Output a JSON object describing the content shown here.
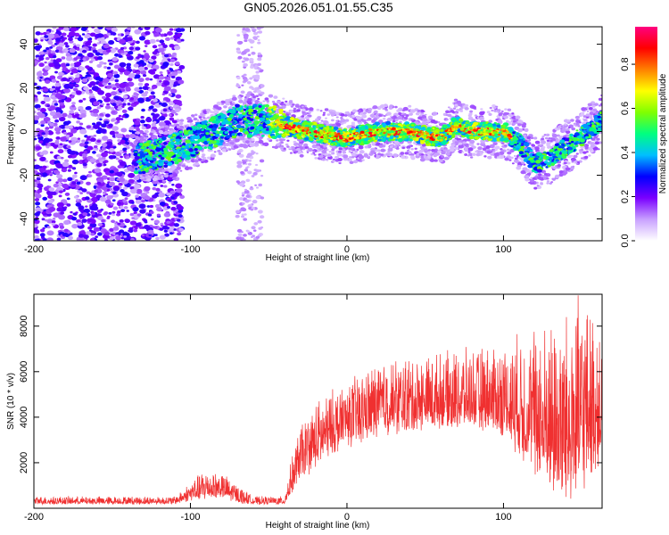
{
  "chart_data": [
    {
      "type": "heatmap",
      "title": "GN05.2026.051.01.55.C35",
      "xlabel": "Height of straight line (km)",
      "ylabel": "Frequency (Hz)",
      "xlim": [
        -200,
        163
      ],
      "ylim": [
        -50,
        48
      ],
      "x_ticks": [
        -200,
        -100,
        0,
        100
      ],
      "x_tick_labels": [
        "-200",
        "-100",
        "0",
        "100"
      ],
      "y_ticks": [
        -40,
        -20,
        0,
        20,
        40
      ],
      "y_tick_labels": [
        "-40",
        "-20",
        "0",
        "20",
        "40"
      ],
      "colorbar": {
        "label": "Normalized spectral amplitude",
        "range": [
          0,
          0.97
        ],
        "ticks": [
          0,
          0.2,
          0.4,
          0.6,
          0.8
        ],
        "tick_labels": [
          "0.0",
          "0.2",
          "0.4",
          "0.6",
          "0.8"
        ],
        "colors": [
          "#ffffff",
          "#c8a0ff",
          "#7a00ff",
          "#0000ff",
          "#00bfff",
          "#00ff80",
          "#80ff00",
          "#ffff00",
          "#ff8000",
          "#ff0000",
          "#ff0080"
        ]
      },
      "ridge": {
        "description_points_x": [
          -130,
          -110,
          -90,
          -70,
          -50,
          -30,
          -10,
          0,
          20,
          40,
          60,
          70,
          80,
          100,
          110,
          120,
          130,
          150,
          163
        ],
        "description_points_y": [
          -12,
          -8,
          -2,
          5,
          5,
          1,
          -2,
          -3,
          0,
          0,
          -3,
          3,
          0,
          0,
          -5,
          -15,
          -12,
          -2,
          5
        ]
      }
    },
    {
      "type": "line",
      "xlabel": "Height of straight line (km)",
      "ylabel": "SNR (10 * v/v)",
      "xlim": [
        -200,
        163
      ],
      "ylim": [
        0,
        9400
      ],
      "x_ticks": [
        -200,
        -100,
        0,
        100
      ],
      "x_tick_labels": [
        "-200",
        "-100",
        "0",
        "100"
      ],
      "y_ticks": [
        2000,
        4000,
        6000,
        8000
      ],
      "y_tick_labels": [
        "2000",
        "4000",
        "6000",
        "8000"
      ],
      "series": [
        {
          "name": "SNR",
          "color": "#f03030",
          "envelope_x": [
            -200,
            -110,
            -100,
            -90,
            -80,
            -70,
            -60,
            -40,
            -35,
            -30,
            -20,
            -10,
            0,
            10,
            20,
            40,
            60,
            80,
            100,
            120,
            130,
            140,
            150,
            163
          ],
          "envelope_base": [
            200,
            200,
            400,
            500,
            500,
            300,
            200,
            200,
            800,
            1400,
            2000,
            2600,
            2900,
            3200,
            3500,
            3600,
            3800,
            3800,
            3500,
            2000,
            1300,
            1000,
            1500,
            2500
          ],
          "envelope_peak": [
            500,
            500,
            1100,
            1700,
            1500,
            1000,
            500,
            500,
            2200,
            3500,
            4500,
            5000,
            5500,
            5800,
            6300,
            6500,
            6600,
            6800,
            7000,
            7600,
            7800,
            8000,
            8800,
            7500
          ]
        }
      ]
    }
  ]
}
